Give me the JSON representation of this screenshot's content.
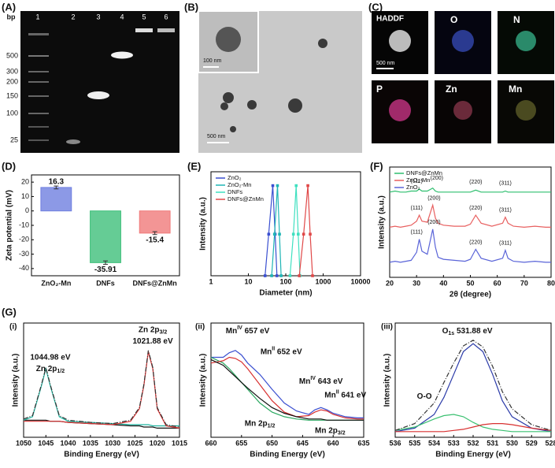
{
  "figure": {
    "panels": {
      "A": "(A)",
      "B": "(B)",
      "C": "(C)",
      "D": "(D)",
      "E": "(E)",
      "F": "(F)",
      "G": "(G)"
    },
    "subpanels": [
      "(i)",
      "(ii)",
      "(iii)"
    ],
    "gel": {
      "unit": "bp",
      "lanes": [
        "1",
        "2",
        "3",
        "4",
        "5",
        "6"
      ],
      "markers": [
        "500",
        "300",
        "200",
        "150",
        "100",
        "25"
      ]
    },
    "tem": {
      "inset_scale": "100 nm",
      "scale": "500 nm"
    },
    "eds": {
      "tiles": [
        "HADDF",
        "O",
        "N",
        "P",
        "Zn",
        "Mn"
      ],
      "scale": "500 nm"
    }
  },
  "chart_data": [
    {
      "type": "bar",
      "ylabel": "Zeta potential (mV)",
      "categories": [
        "ZnO₂-Mn",
        "DNFs",
        "DNFs@ZnMn"
      ],
      "values": [
        16.3,
        -35.91,
        -15.4
      ],
      "errors": [
        1,
        1.2,
        1
      ],
      "colors": [
        "#6f7fe0",
        "#3fbf7a",
        "#f07a7a"
      ],
      "ylim": [
        -45,
        25
      ],
      "yticks": [
        -40,
        -30,
        -20,
        -10,
        0,
        10,
        20
      ]
    },
    {
      "type": "line",
      "xlabel": "Diameter (nm)",
      "ylabel": "Intensity (a.u.)",
      "xlog": true,
      "xlim": [
        1,
        10000
      ],
      "xticks": [
        1,
        10,
        100,
        1000,
        10000
      ],
      "ylim": [
        0,
        15
      ],
      "markers": true,
      "legend": "upper left",
      "series": [
        {
          "name": "ZnO₂",
          "color": "#3a4fd0",
          "x": [
            28,
            35,
            45,
            52,
            58
          ],
          "values": [
            0,
            6,
            13,
            6,
            0
          ]
        },
        {
          "name": "ZnO₂-Mn",
          "color": "#1fb5b5",
          "x": [
            42,
            50,
            60,
            68,
            75
          ],
          "values": [
            0,
            6,
            13,
            6,
            0
          ]
        },
        {
          "name": "DNFs",
          "color": "#3fe0c0",
          "x": [
            130,
            160,
            190,
            215,
            240
          ],
          "values": [
            0,
            6,
            13,
            6,
            0
          ]
        },
        {
          "name": "DNFs@ZnMn",
          "color": "#e04848",
          "x": [
            230,
            300,
            390,
            450,
            520
          ],
          "values": [
            0,
            6,
            13,
            6,
            0
          ]
        }
      ]
    },
    {
      "type": "line",
      "xlabel": "2θ (degree)",
      "ylabel": "Intensity (a.u.)",
      "xlim": [
        20,
        80
      ],
      "xticks": [
        20,
        30,
        40,
        50,
        60,
        70,
        80
      ],
      "ylim": [
        0,
        11
      ],
      "legend": "upper left",
      "x": [
        20,
        22,
        24,
        26,
        28,
        30,
        31,
        32,
        34,
        36,
        37,
        38,
        40,
        44,
        48,
        50,
        52,
        54,
        58,
        62,
        63,
        64,
        66,
        70,
        74,
        78,
        80
      ],
      "series": [
        {
          "name": "DNFs@ZnMn",
          "color": "#2fbf6f",
          "values": [
            8.5,
            8.6,
            8.5,
            8.5,
            8.6,
            8.6,
            8.8,
            8.6,
            8.6,
            8.9,
            8.6,
            8.5,
            8.5,
            8.5,
            8.5,
            8.5,
            8.7,
            8.5,
            8.5,
            8.5,
            8.6,
            8.5,
            8.5,
            8.5,
            8.5,
            8.5,
            8.5
          ]
        },
        {
          "name": "ZnO₂-Mn",
          "color": "#e86060",
          "values": [
            5.0,
            5.1,
            5.0,
            5.1,
            5.2,
            5.6,
            6.2,
            5.6,
            5.5,
            7.2,
            5.9,
            5.4,
            5.2,
            5.1,
            5.1,
            5.3,
            6.2,
            5.4,
            5.1,
            5.4,
            6.0,
            5.4,
            5.1,
            5.0,
            5.1,
            5.0,
            5.0
          ]
        },
        {
          "name": "ZnO₂",
          "color": "#5a64d8",
          "values": [
            1.5,
            1.6,
            1.5,
            1.6,
            1.7,
            2.5,
            3.8,
            2.6,
            2.3,
            4.8,
            3.0,
            2.0,
            1.8,
            1.7,
            1.6,
            1.8,
            2.8,
            1.9,
            1.6,
            1.9,
            2.7,
            1.9,
            1.6,
            1.5,
            1.6,
            1.5,
            1.5
          ]
        }
      ],
      "annotations": [
        {
          "text": "(111)",
          "x": 30,
          "y": 9.6,
          "color": "#1a9a9a"
        },
        {
          "text": "(200)",
          "x": 37.5,
          "y": 9.9,
          "color": "#1a9a3a"
        },
        {
          "text": "(220)",
          "x": 52,
          "y": 9.5,
          "color": "#2a2a9a"
        },
        {
          "text": "(311)",
          "x": 63,
          "y": 9.4,
          "color": "#c03030"
        },
        {
          "text": "(111)",
          "x": 30,
          "y": 6.9,
          "color": "#1a9a9a"
        },
        {
          "text": "(200)",
          "x": 36.5,
          "y": 7.9,
          "color": "#1a9a3a"
        },
        {
          "text": "(220)",
          "x": 52,
          "y": 6.9,
          "color": "#2a2a9a"
        },
        {
          "text": "(311)",
          "x": 63,
          "y": 6.7,
          "color": "#c03030"
        },
        {
          "text": "(111)",
          "x": 30,
          "y": 4.5,
          "color": "#1a9a9a"
        },
        {
          "text": "(200)",
          "x": 36.5,
          "y": 5.5,
          "color": "#1a9a3a"
        },
        {
          "text": "(220)",
          "x": 52,
          "y": 3.5,
          "color": "#2a2a9a"
        },
        {
          "text": "(311)",
          "x": 63,
          "y": 3.4,
          "color": "#c03030"
        }
      ]
    },
    {
      "type": "line",
      "xlabel": "Binding Energy (eV)",
      "ylabel": "Intensity (a.u.)",
      "xlim": [
        1050,
        1015
      ],
      "xticks": [
        1050,
        1045,
        1040,
        1035,
        1030,
        1025,
        1020,
        1015
      ],
      "ylim": [
        0,
        10
      ],
      "x": [
        1050,
        1048,
        1046,
        1045,
        1044,
        1042,
        1040,
        1035,
        1030,
        1026,
        1024,
        1023,
        1022,
        1021,
        1020,
        1018,
        1015
      ],
      "series": [
        {
          "color": "#111111",
          "values": [
            1.5,
            1.5,
            1.5,
            1.5,
            1.4,
            1.4,
            1.3,
            1.2,
            1.1,
            1.0,
            1.0,
            0.9,
            0.9,
            0.9,
            0.8,
            0.8,
            0.8
          ]
        },
        {
          "color": "#1fb5a0",
          "values": [
            1.5,
            1.8,
            4.5,
            6.0,
            4.5,
            1.8,
            1.4,
            1.3,
            1.2,
            1.1,
            1.1,
            1.1,
            1.1,
            1.0,
            1.0,
            1.0,
            1.0
          ]
        },
        {
          "color": "#d83030",
          "values": [
            1.4,
            1.4,
            1.4,
            1.4,
            1.4,
            1.4,
            1.3,
            1.2,
            1.1,
            1.4,
            2.5,
            4.5,
            7.5,
            6.0,
            2.5,
            1.0,
            0.8
          ]
        },
        {
          "color": "#333333",
          "style": "dashdot",
          "values": [
            1.6,
            1.9,
            4.6,
            6.1,
            4.6,
            1.9,
            1.5,
            1.3,
            1.2,
            1.5,
            2.6,
            4.6,
            7.6,
            6.1,
            2.6,
            1.1,
            0.9
          ]
        }
      ],
      "annotations": [
        {
          "text": "Zn 2p",
          "sub": "1/2",
          "x": 1044,
          "y": 6.0
        },
        {
          "text": "1044.98 eV",
          "x": 1044,
          "y": 7.0
        },
        {
          "text": "Zn 2p",
          "sub": "3/2",
          "x": 1021,
          "y": 9.4
        },
        {
          "text": "1021.88 eV",
          "x": 1021,
          "y": 8.4
        }
      ]
    },
    {
      "type": "line",
      "xlabel": "Binding Energy (eV)",
      "ylabel": "Intensity (a.u.)",
      "xlim": [
        660,
        635
      ],
      "xticks": [
        660,
        655,
        650,
        645,
        640,
        635
      ],
      "ylim": [
        0,
        10
      ],
      "x": [
        660,
        658,
        657,
        656,
        655,
        654,
        652,
        650,
        648,
        646,
        644,
        643,
        642,
        641,
        640,
        638,
        636,
        635
      ],
      "series": [
        {
          "color": "#3a4fd0",
          "values": [
            7.0,
            7.0,
            7.4,
            7.6,
            7.2,
            6.5,
            5.5,
            4.2,
            3.0,
            2.3,
            2.0,
            2.4,
            2.6,
            2.4,
            2.1,
            1.8,
            1.7,
            1.7
          ]
        },
        {
          "color": "#2aa860",
          "values": [
            7.0,
            6.5,
            6.0,
            5.4,
            4.8,
            4.2,
            3.0,
            2.2,
            1.8,
            1.6,
            1.5,
            1.5,
            1.5,
            1.5,
            1.5,
            1.5,
            1.5,
            1.5
          ]
        },
        {
          "color": "#d83030",
          "values": [
            6.5,
            6.7,
            7.0,
            6.9,
            6.6,
            6.0,
            4.6,
            3.2,
            2.2,
            1.8,
            1.9,
            2.2,
            2.4,
            2.3,
            2.0,
            1.7,
            1.6,
            1.6
          ]
        },
        {
          "color": "#111111",
          "values": [
            6.8,
            6.3,
            5.8,
            5.3,
            4.8,
            4.3,
            3.4,
            2.6,
            2.1,
            1.8,
            1.6,
            1.6,
            1.6,
            1.5,
            1.5,
            1.5,
            1.5,
            1.5
          ]
        }
      ],
      "annotations": [
        {
          "text": "Mn",
          "sup": "IV",
          "tail": " 657 eV",
          "x": 654,
          "y": 9.3
        },
        {
          "text": "Mn",
          "sup": "II",
          "tail": " 652 eV",
          "x": 648.5,
          "y": 7.5
        },
        {
          "text": "Mn",
          "sup": "IV",
          "tail": " 643 eV",
          "x": 642,
          "y": 4.9
        },
        {
          "text": "Mn",
          "sup": "II",
          "tail": " 641 eV",
          "x": 638,
          "y": 3.7
        },
        {
          "text": "Mn 2p",
          "sub": "1/2",
          "x": 652,
          "y": 1.2
        },
        {
          "text": "Mn 2p",
          "sub": "3/2",
          "x": 640.5,
          "y": 0.6
        }
      ]
    },
    {
      "type": "line",
      "xlabel": "Binding Energy (eV)",
      "ylabel": "Intensity (a.u.)",
      "xlim": [
        536,
        528
      ],
      "xticks": [
        536,
        535,
        534,
        533,
        532,
        531,
        530,
        529,
        528
      ],
      "ylim": [
        0,
        10
      ],
      "x": [
        536,
        535,
        534,
        533.5,
        533,
        532.5,
        532,
        531.5,
        531,
        530.5,
        530,
        529,
        528
      ],
      "series": [
        {
          "color": "#2a3aa8",
          "values": [
            0.5,
            0.8,
            2.0,
            3.5,
            5.5,
            7.5,
            8.2,
            7.5,
            5.5,
            3.2,
            1.8,
            0.8,
            0.5
          ]
        },
        {
          "color": "#3ac070",
          "values": [
            0.6,
            0.9,
            1.6,
            1.9,
            2.0,
            1.8,
            1.3,
            0.9,
            0.7,
            0.6,
            0.5,
            0.5,
            0.5
          ]
        },
        {
          "color": "#d83030",
          "values": [
            0.5,
            0.5,
            0.5,
            0.5,
            0.6,
            0.7,
            0.9,
            1.1,
            1.2,
            1.2,
            1.1,
            0.8,
            0.6
          ]
        },
        {
          "color": "#333333",
          "style": "dashdot",
          "values": [
            0.6,
            1.2,
            3.0,
            4.8,
            6.5,
            8.0,
            8.5,
            7.9,
            6.2,
            4.0,
            2.5,
            1.1,
            0.6
          ]
        }
      ],
      "annotations": [
        {
          "text": "O",
          "sub": "1s",
          "tail": "  531.88 eV",
          "x": 532.3,
          "y": 9.3
        },
        {
          "text": "O-O",
          "x": 534.5,
          "y": 3.6,
          "color": "#c02020"
        }
      ]
    }
  ]
}
